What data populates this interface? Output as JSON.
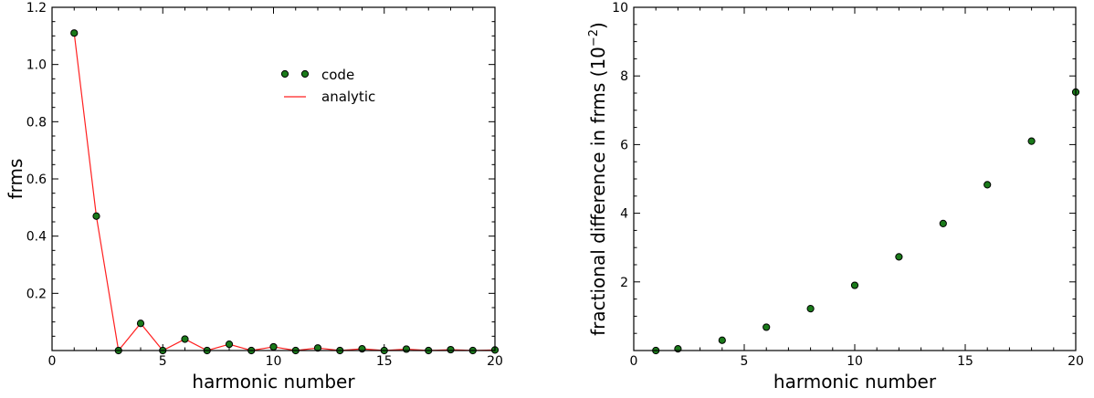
{
  "colors": {
    "marker_fill": "#1a7a1a",
    "line": "#ff2020"
  },
  "chart_data": [
    {
      "type": "line",
      "xlabel": "harmonic number",
      "ylabel": "frms",
      "xlim": [
        0,
        20
      ],
      "ylim": [
        0,
        1.2
      ],
      "xticks": [
        0,
        5,
        10,
        15,
        20
      ],
      "yticks": [
        0.2,
        0.4,
        0.6,
        0.8,
        1.0,
        1.2
      ],
      "ytick_labels": [
        "0.2",
        "0.4",
        "0.6",
        "0.8",
        "1.0",
        "1.2"
      ],
      "legend": {
        "placement": "upper-center",
        "entries": [
          "code",
          "analytic"
        ]
      },
      "series": [
        {
          "name": "code",
          "style": "markers",
          "x": [
            1,
            2,
            3,
            4,
            5,
            6,
            7,
            8,
            9,
            10,
            11,
            12,
            13,
            14,
            15,
            16,
            17,
            18,
            19,
            20
          ],
          "y": [
            1.11,
            0.47,
            0.0,
            0.095,
            0.0,
            0.04,
            0.0,
            0.022,
            0.0,
            0.013,
            0.0,
            0.009,
            0.0,
            0.006,
            0.0,
            0.005,
            0.0,
            0.003,
            0.0,
            0.002
          ]
        },
        {
          "name": "analytic",
          "style": "line",
          "x": [
            1,
            2,
            3,
            4,
            5,
            6,
            7,
            8,
            9,
            10,
            11,
            12,
            13,
            14,
            15,
            16,
            17,
            18,
            19,
            20
          ],
          "y": [
            1.11,
            0.47,
            0.0,
            0.095,
            0.0,
            0.04,
            0.0,
            0.022,
            0.0,
            0.013,
            0.0,
            0.009,
            0.0,
            0.006,
            0.0,
            0.005,
            0.0,
            0.003,
            0.0,
            0.002
          ]
        }
      ]
    },
    {
      "type": "scatter",
      "xlabel": "harmonic number",
      "ylabel": "fractional difference in frms (10",
      "ylabel_exponent": "−2",
      "ylabel_close": ")",
      "xlim": [
        0,
        20
      ],
      "ylim": [
        0,
        10
      ],
      "xticks": [
        0,
        5,
        10,
        15,
        20
      ],
      "yticks": [
        2,
        4,
        6,
        8,
        10
      ],
      "series": [
        {
          "x": [
            1,
            2,
            4,
            6,
            8,
            10,
            12,
            14,
            16,
            18,
            20
          ],
          "y": [
            0.0,
            0.05,
            0.3,
            0.68,
            1.22,
            1.9,
            2.73,
            3.7,
            4.83,
            6.1,
            7.53
          ]
        }
      ]
    }
  ]
}
